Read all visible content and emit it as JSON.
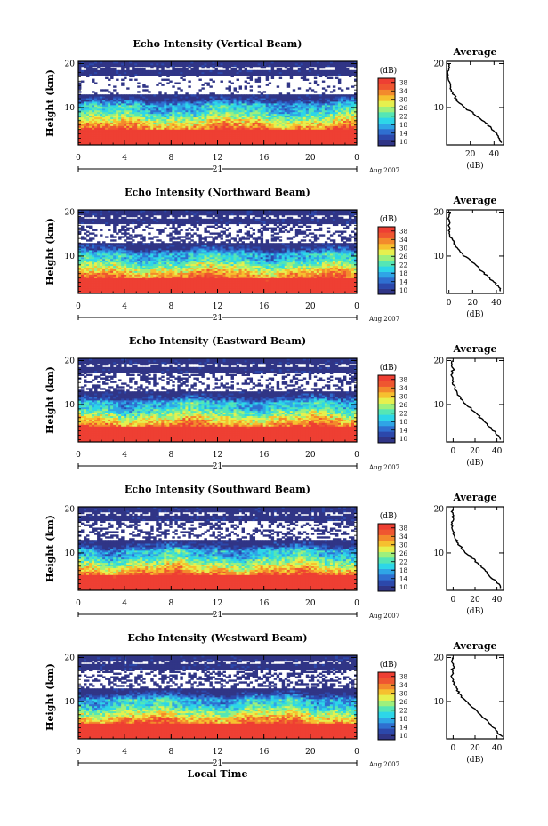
{
  "chart_data": [
    {
      "type": "heatmap",
      "title": "Echo Intensity (Vertical Beam)",
      "ylabel": "Height (km)",
      "xlim": [
        0,
        24
      ],
      "ylim": [
        1.5,
        20.5
      ],
      "x_ticks": [
        "0",
        "4",
        "8",
        "12",
        "16",
        "20",
        "0"
      ],
      "y_ticks": [
        "10",
        "20"
      ],
      "date_label": "21",
      "month_label": "Aug 2007",
      "colorbar": {
        "unit": "(dB)",
        "ticks": [
          "10",
          "14",
          "18",
          "22",
          "26",
          "30",
          "34",
          "38"
        ],
        "range": [
          8,
          40
        ]
      },
      "average": {
        "title": "Average",
        "xlabel": "(dB)",
        "x_ticks": [
          "20",
          "40"
        ],
        "y_ticks": [
          "10",
          "20"
        ],
        "xlim": [
          0,
          48
        ],
        "heights": [
          2,
          3,
          4,
          5,
          6,
          7,
          8,
          9,
          10,
          11,
          12,
          13,
          14,
          15,
          16,
          17,
          18,
          19,
          20
        ],
        "values": [
          47,
          44,
          42,
          38,
          35,
          31,
          26,
          21,
          15,
          11,
          8,
          6,
          4,
          3,
          2,
          1.5,
          1.5,
          2,
          1.5
        ]
      }
    },
    {
      "type": "heatmap",
      "title": "Echo Intensity (Northward Beam)",
      "ylabel": "Height (km)",
      "xlim": [
        0,
        24
      ],
      "ylim": [
        1.5,
        20.5
      ],
      "x_ticks": [
        "0",
        "4",
        "8",
        "12",
        "16",
        "20",
        "0"
      ],
      "y_ticks": [
        "10",
        "20"
      ],
      "date_label": "21",
      "month_label": "Aug 2007",
      "colorbar": {
        "unit": "(dB)",
        "ticks": [
          "10",
          "14",
          "18",
          "22",
          "26",
          "30",
          "34",
          "38"
        ],
        "range": [
          8,
          40
        ]
      },
      "average": {
        "title": "Average",
        "xlabel": "(dB)",
        "x_ticks": [
          "0",
          "20",
          "40"
        ],
        "y_ticks": [
          "10",
          "20"
        ],
        "xlim": [
          -2,
          46
        ],
        "heights": [
          2,
          3,
          4,
          5,
          6,
          7,
          8,
          9,
          10,
          11,
          12,
          13,
          14,
          15,
          16,
          17,
          18,
          19,
          20
        ],
        "values": [
          44,
          42,
          38,
          34,
          30,
          26,
          22,
          18,
          13,
          9,
          6,
          4,
          2,
          1,
          0,
          0,
          0,
          0,
          0
        ]
      }
    },
    {
      "type": "heatmap",
      "title": "Echo Intensity (Eastward Beam)",
      "ylabel": "Height (km)",
      "xlim": [
        0,
        24
      ],
      "ylim": [
        1.5,
        20.5
      ],
      "x_ticks": [
        "0",
        "4",
        "8",
        "12",
        "16",
        "20",
        "0"
      ],
      "y_ticks": [
        "10",
        "20"
      ],
      "date_label": "21",
      "month_label": "Aug 2007",
      "colorbar": {
        "unit": "(dB)",
        "ticks": [
          "10",
          "14",
          "18",
          "22",
          "26",
          "30",
          "34",
          "38"
        ],
        "range": [
          8,
          40
        ]
      },
      "average": {
        "title": "Average",
        "xlabel": "(dB)",
        "x_ticks": [
          "0",
          "20",
          "40"
        ],
        "y_ticks": [
          "10",
          "20"
        ],
        "xlim": [
          -6,
          46
        ],
        "heights": [
          2,
          3,
          4,
          5,
          6,
          7,
          8,
          9,
          10,
          11,
          12,
          13,
          14,
          15,
          16,
          17,
          18,
          19,
          20
        ],
        "values": [
          44,
          41,
          37,
          33,
          29,
          25,
          21,
          17,
          12,
          8,
          5,
          3,
          1,
          0,
          -1,
          -1,
          0,
          -1,
          0
        ]
      }
    },
    {
      "type": "heatmap",
      "title": "Echo Intensity (Southward Beam)",
      "ylabel": "Height (km)",
      "xlim": [
        0,
        24
      ],
      "ylim": [
        1.5,
        20.5
      ],
      "x_ticks": [
        "0",
        "4",
        "8",
        "12",
        "16",
        "20",
        "0"
      ],
      "y_ticks": [
        "10",
        "20"
      ],
      "date_label": "21",
      "month_label": "Aug 2007",
      "colorbar": {
        "unit": "(dB)",
        "ticks": [
          "10",
          "14",
          "18",
          "22",
          "26",
          "30",
          "34",
          "38"
        ],
        "range": [
          8,
          40
        ]
      },
      "average": {
        "title": "Average",
        "xlabel": "(dB)",
        "x_ticks": [
          "0",
          "20",
          "40"
        ],
        "y_ticks": [
          "10",
          "20"
        ],
        "xlim": [
          -6,
          46
        ],
        "heights": [
          2,
          3,
          4,
          5,
          6,
          7,
          8,
          9,
          10,
          11,
          12,
          13,
          14,
          15,
          16,
          17,
          18,
          19,
          20
        ],
        "values": [
          44,
          41,
          37,
          33,
          29,
          25,
          21,
          17,
          12,
          8,
          5,
          3,
          1,
          0,
          -1,
          -1,
          0,
          -1,
          0
        ]
      }
    },
    {
      "type": "heatmap",
      "title": "Echo Intensity (Westward Beam)",
      "ylabel": "Height (km)",
      "xlabel": "Local Time",
      "xlim": [
        0,
        24
      ],
      "ylim": [
        1.5,
        20.5
      ],
      "x_ticks": [
        "0",
        "4",
        "8",
        "12",
        "16",
        "20",
        "0"
      ],
      "y_ticks": [
        "10",
        "20"
      ],
      "date_label": "21",
      "month_label": "Aug 2007",
      "colorbar": {
        "unit": "(dB)",
        "ticks": [
          "10",
          "14",
          "18",
          "22",
          "26",
          "30",
          "34",
          "38"
        ],
        "range": [
          8,
          40
        ]
      },
      "average": {
        "title": "Average",
        "xlabel": "(dB)",
        "x_ticks": [
          "0",
          "20",
          "40"
        ],
        "y_ticks": [
          "10",
          "20"
        ],
        "xlim": [
          -6,
          46
        ],
        "heights": [
          2,
          3,
          4,
          5,
          6,
          7,
          8,
          9,
          10,
          11,
          12,
          13,
          14,
          15,
          16,
          17,
          18,
          19,
          20
        ],
        "values": [
          44,
          41,
          37,
          33,
          29,
          25,
          21,
          17,
          12,
          8,
          5,
          3,
          1,
          0,
          -1,
          -1,
          0,
          -1,
          0
        ]
      }
    }
  ],
  "colormap": [
    "#303586",
    "#2c48ab",
    "#2f6fd0",
    "#2fa5e6",
    "#2dd6e8",
    "#55e6b5",
    "#9ef07c",
    "#e6f04e",
    "#f6c02f",
    "#f38a2c",
    "#ef5630",
    "#ee3f33"
  ]
}
